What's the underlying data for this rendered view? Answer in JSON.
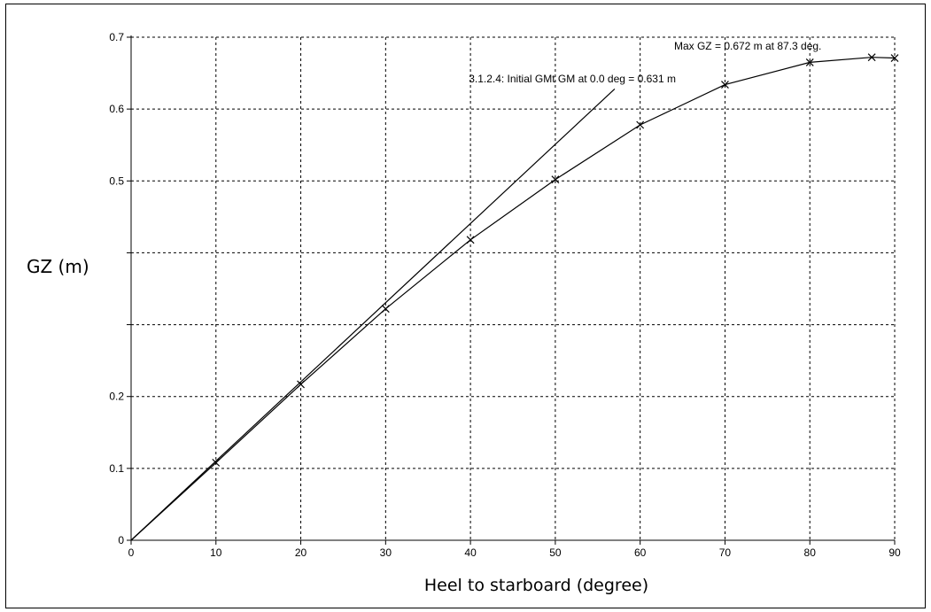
{
  "chart_data": {
    "type": "line",
    "xlabel": "Heel to starboard (degree)",
    "ylabel": "GZ (m)",
    "xlim": [
      0,
      90
    ],
    "ylim": [
      0,
      0.7
    ],
    "x_ticks": [
      "0",
      "10",
      "20",
      "30",
      "40",
      "50",
      "60",
      "70",
      "80",
      "90"
    ],
    "y_ticks": [
      "0",
      "0.1",
      "0.2",
      "",
      "",
      "0.5",
      "0.6",
      "0.7"
    ],
    "grid": true,
    "series": [
      {
        "x": [
          0,
          10,
          20,
          30,
          40,
          50,
          60,
          70,
          80,
          87.3,
          90
        ],
        "y": [
          0,
          0.108,
          0.217,
          0.322,
          0.418,
          0.502,
          0.578,
          0.634,
          0.665,
          0.672,
          0.671
        ],
        "color": "#000000"
      },
      {
        "x": [
          0,
          57
        ],
        "y": [
          0,
          0.628
        ],
        "color": "#000000"
      }
    ],
    "annotations": [
      {
        "text": "Max GZ = 0.672 m at 87.3 deg.",
        "x": 64,
        "y": 0.683
      },
      {
        "text": "3.1.2.4: Initial GMt GM at 0.0 deg = 0.631 m",
        "x": 39.8,
        "y": 0.637
      }
    ]
  }
}
